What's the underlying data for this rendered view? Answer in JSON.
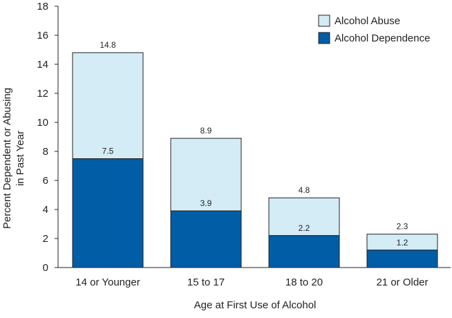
{
  "chart_data": {
    "type": "bar",
    "stacked": true,
    "xlabel": "Age at First Use of Alcohol",
    "ylabel": [
      "Percent Dependent or Abusing",
      "in Past Year"
    ],
    "ylim": [
      0,
      18
    ],
    "yticks": [
      "0",
      "2",
      "4",
      "6",
      "8",
      "10",
      "12",
      "14",
      "16",
      "18"
    ],
    "grid": false,
    "legend_position": "top-right",
    "categories": [
      "14 or Younger",
      "15 to 17",
      "18 to 20",
      "21 or Older"
    ],
    "series": [
      {
        "name": "Alcohol Dependence",
        "values": [
          7.5,
          3.9,
          2.2,
          1.2
        ],
        "color": "#005da6"
      },
      {
        "name": "Alcohol Abuse",
        "totals": [
          14.8,
          8.9,
          4.8,
          2.3
        ],
        "color": "#d4ecf6"
      }
    ],
    "total_labels": [
      "14.8",
      "8.9",
      "4.8",
      "2.3"
    ],
    "dependence_labels": [
      "7.5",
      "3.9",
      "2.2",
      "1.2"
    ],
    "legend": [
      {
        "label": "Alcohol Abuse",
        "color": "#d4ecf6"
      },
      {
        "label": "Alcohol Dependence",
        "color": "#005da6"
      }
    ],
    "edge_color": "#231f20"
  }
}
